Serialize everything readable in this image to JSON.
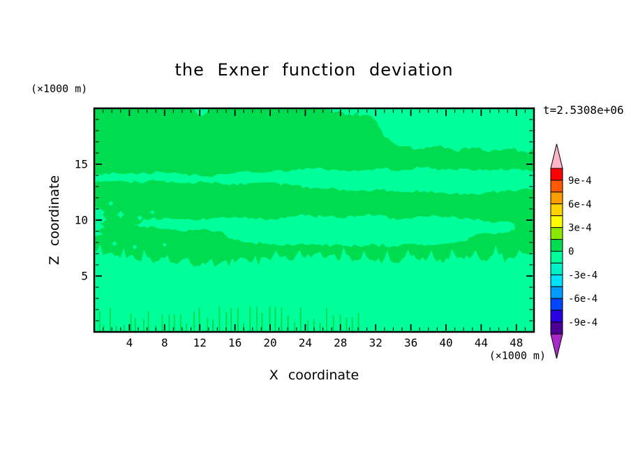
{
  "title": "the Exner function deviation",
  "time_label": "t=2.5308e+06",
  "axes": {
    "x": {
      "label": "X coordinate",
      "unit": "(×1000 m)",
      "range": [
        0,
        50
      ],
      "major_ticks": [
        4,
        8,
        12,
        16,
        20,
        24,
        28,
        32,
        36,
        40,
        44,
        48
      ],
      "minor_step": 1
    },
    "z": {
      "label": "Z coordinate",
      "unit": "(×1000 m)",
      "range": [
        0,
        20
      ],
      "major_ticks": [
        5,
        10,
        15
      ],
      "minor_step": 1
    }
  },
  "colorbar": {
    "labels": [
      "9e-4",
      "6e-4",
      "3e-4",
      "0",
      "-3e-4",
      "-6e-4",
      "-9e-4"
    ],
    "label_boundary_indices": [
      1,
      3,
      5,
      7,
      9,
      11,
      13
    ],
    "levels": [
      0.00105,
      0.0009,
      0.00075,
      0.0006,
      0.00045,
      0.0003,
      0.00015,
      0,
      -0.00015,
      -0.0003,
      -0.00045,
      -0.0006,
      -0.00075,
      -0.0009,
      -0.00105
    ],
    "segment_colors": [
      "#ff0000",
      "#ff5a00",
      "#ff9c00",
      "#ffd200",
      "#ffff00",
      "#8ce800",
      "#00dc50",
      "#00ff9b",
      "#00f0c8",
      "#00e1ff",
      "#009cff",
      "#0046ff",
      "#2800e1",
      "#4b0096"
    ],
    "over_color": "#ffb4c8",
    "under_color": "#aa28c8"
  },
  "chart_data": {
    "type": "filled_contour",
    "title": "the Exner function deviation",
    "xlabel": "X coordinate",
    "ylabel": "Z coordinate",
    "x_range": [
      0,
      50
    ],
    "z_range": [
      0,
      20
    ],
    "units": "×1000 m",
    "time": "t=2.5308e+06",
    "contour_interval": 0.00015,
    "background_band": {
      "value_range": [
        0,
        0.00015
      ],
      "color": "#00dc50"
    },
    "negative_band": {
      "value_range": [
        -0.00015,
        0
      ],
      "color": "#00ff9b"
    },
    "regions": [
      {
        "name": "lower-layer",
        "roughness": 0.3,
        "spike": {
          "period": 5,
          "amp": 0.9
        },
        "points": [
          [
            0,
            0
          ],
          [
            0,
            7.3
          ],
          [
            1,
            6.9
          ],
          [
            2,
            7.1
          ],
          [
            3,
            6.6
          ],
          [
            4,
            6.8
          ],
          [
            5,
            6.4
          ],
          [
            6,
            6.7
          ],
          [
            7,
            6.3
          ],
          [
            8,
            6.6
          ],
          [
            9,
            6.2
          ],
          [
            10,
            6.5
          ],
          [
            11,
            6.1
          ],
          [
            12,
            5.9
          ],
          [
            13,
            6.3
          ],
          [
            14,
            6.0
          ],
          [
            15,
            6.4
          ],
          [
            16,
            6.2
          ],
          [
            17,
            6.6
          ],
          [
            18,
            6.3
          ],
          [
            19,
            6.7
          ],
          [
            20,
            6.4
          ],
          [
            21,
            6.8
          ],
          [
            22,
            6.5
          ],
          [
            23,
            6.9
          ],
          [
            24,
            6.6
          ],
          [
            25,
            7.0
          ],
          [
            26,
            6.7
          ],
          [
            27,
            6.9
          ],
          [
            28,
            6.5
          ],
          [
            29,
            6.8
          ],
          [
            30,
            6.4
          ],
          [
            31,
            6.7
          ],
          [
            32,
            6.3
          ],
          [
            33,
            6.6
          ],
          [
            34,
            6.2
          ],
          [
            35,
            6.5
          ],
          [
            36,
            6.8
          ],
          [
            37,
            6.4
          ],
          [
            38,
            6.7
          ],
          [
            39,
            6.3
          ],
          [
            40,
            6.6
          ],
          [
            41,
            6.9
          ],
          [
            42,
            6.5
          ],
          [
            43,
            6.8
          ],
          [
            44,
            6.4
          ],
          [
            45,
            6.7
          ],
          [
            46,
            6.9
          ],
          [
            47,
            6.6
          ],
          [
            48,
            6.8
          ],
          [
            49,
            7.0
          ],
          [
            50,
            7.2
          ],
          [
            50,
            0
          ]
        ]
      },
      {
        "name": "mid-band",
        "roughness": 0.18,
        "points": [
          [
            4.2,
            9.6
          ],
          [
            6,
            10.0
          ],
          [
            8,
            10.2
          ],
          [
            10,
            10.1
          ],
          [
            12,
            10.0
          ],
          [
            14,
            10.2
          ],
          [
            16,
            10.3
          ],
          [
            18,
            10.2
          ],
          [
            20,
            10.1
          ],
          [
            22,
            10.3
          ],
          [
            24,
            10.4
          ],
          [
            26,
            10.3
          ],
          [
            28,
            10.2
          ],
          [
            30,
            10.4
          ],
          [
            32,
            10.4
          ],
          [
            34,
            10.2
          ],
          [
            36,
            10.1
          ],
          [
            38,
            10.3
          ],
          [
            40,
            10.3
          ],
          [
            42,
            10.1
          ],
          [
            44,
            10.0
          ],
          [
            46,
            9.9
          ],
          [
            47.8,
            9.6
          ],
          [
            47.8,
            9.1
          ],
          [
            46,
            8.9
          ],
          [
            44,
            8.8
          ],
          [
            43,
            8.5
          ],
          [
            42,
            8.1
          ],
          [
            40,
            7.9
          ],
          [
            38,
            7.8
          ],
          [
            36,
            7.9
          ],
          [
            34,
            7.7
          ],
          [
            32,
            7.8
          ],
          [
            30,
            7.7
          ],
          [
            28,
            7.8
          ],
          [
            26,
            7.7
          ],
          [
            24,
            7.8
          ],
          [
            22,
            7.9
          ],
          [
            20,
            7.8
          ],
          [
            18,
            8.0
          ],
          [
            16,
            8.2
          ],
          [
            15,
            8.6
          ],
          [
            14,
            9.0
          ],
          [
            12,
            9.1
          ],
          [
            10,
            9.0
          ],
          [
            8,
            9.2
          ],
          [
            6,
            9.3
          ]
        ]
      },
      {
        "name": "upper-band",
        "roughness": 0.15,
        "points": [
          [
            0,
            14.0
          ],
          [
            2.5,
            14.2
          ],
          [
            5,
            14.1
          ],
          [
            7.5,
            14.3
          ],
          [
            10,
            14.1
          ],
          [
            12.5,
            13.9
          ],
          [
            15,
            14.1
          ],
          [
            17.5,
            14.4
          ],
          [
            20,
            14.3
          ],
          [
            22.5,
            14.5
          ],
          [
            25,
            14.6
          ],
          [
            27.5,
            14.5
          ],
          [
            30,
            14.4
          ],
          [
            32.5,
            14.6
          ],
          [
            35,
            14.5
          ],
          [
            37.5,
            14.7
          ],
          [
            40,
            14.5
          ],
          [
            42.5,
            14.6
          ],
          [
            45,
            14.4
          ],
          [
            47.5,
            14.6
          ],
          [
            50,
            14.4
          ],
          [
            50,
            12.9
          ],
          [
            47.5,
            12.6
          ],
          [
            45,
            12.5
          ],
          [
            42.5,
            12.3
          ],
          [
            40,
            12.4
          ],
          [
            37.5,
            12.6
          ],
          [
            35,
            12.5
          ],
          [
            32.5,
            12.7
          ],
          [
            30,
            12.6
          ],
          [
            27.5,
            12.8
          ],
          [
            25,
            12.9
          ],
          [
            22.5,
            13.1
          ],
          [
            20,
            13.4
          ],
          [
            17.5,
            13.3
          ],
          [
            15,
            13.2
          ],
          [
            12.5,
            13.4
          ],
          [
            10,
            13.3
          ],
          [
            7.5,
            13.5
          ],
          [
            5,
            13.4
          ],
          [
            2.5,
            13.5
          ],
          [
            0,
            13.3
          ]
        ]
      },
      {
        "name": "top-right-lobe",
        "roughness": 0.2,
        "points": [
          [
            26,
            20
          ],
          [
            27,
            19.6
          ],
          [
            29,
            19.5
          ],
          [
            31,
            19.4
          ],
          [
            32,
            18.9
          ],
          [
            32.5,
            18.2
          ],
          [
            33,
            17.4
          ],
          [
            34,
            16.9
          ],
          [
            35.5,
            16.6
          ],
          [
            37,
            16.4
          ],
          [
            39,
            16.6
          ],
          [
            41,
            16.2
          ],
          [
            43,
            16.5
          ],
          [
            45,
            16.1
          ],
          [
            47,
            16.4
          ],
          [
            49,
            16.1
          ],
          [
            50,
            16.3
          ],
          [
            50,
            20
          ]
        ]
      },
      {
        "name": "top-small-lobe",
        "roughness": 0.1,
        "points": [
          [
            11.3,
            20
          ],
          [
            11.7,
            19.5
          ],
          [
            12.3,
            19.3
          ],
          [
            12.8,
            19.6
          ],
          [
            13.2,
            20
          ]
        ]
      },
      {
        "name": "left-edge-patch",
        "roughness": 0.25,
        "points": [
          [
            0,
            11.3
          ],
          [
            0.6,
            11.0
          ],
          [
            1.2,
            10.7
          ],
          [
            0.5,
            10.4
          ],
          [
            1.4,
            10.1
          ],
          [
            0.6,
            9.7
          ],
          [
            1.2,
            9.3
          ],
          [
            0.4,
            9.0
          ],
          [
            1.0,
            8.7
          ],
          [
            0,
            8.5
          ]
        ]
      }
    ],
    "speckles": [
      {
        "x": 3.0,
        "z": 10.5,
        "r": 0.4
      },
      {
        "x": 5.2,
        "z": 10.2,
        "r": 0.3
      },
      {
        "x": 1.9,
        "z": 11.5,
        "r": 0.28
      },
      {
        "x": 6.6,
        "z": 10.7,
        "r": 0.25
      },
      {
        "x": 2.3,
        "z": 7.9,
        "r": 0.3
      },
      {
        "x": 4.6,
        "z": 7.6,
        "r": 0.28
      },
      {
        "x": 8.0,
        "z": 7.8,
        "r": 0.25
      }
    ],
    "grass_streaks": {
      "x_from": 0.5,
      "x_to": 30.5,
      "step": 0.72,
      "width": 0.16,
      "h_min": 0.5,
      "h_max": 2.3
    }
  }
}
